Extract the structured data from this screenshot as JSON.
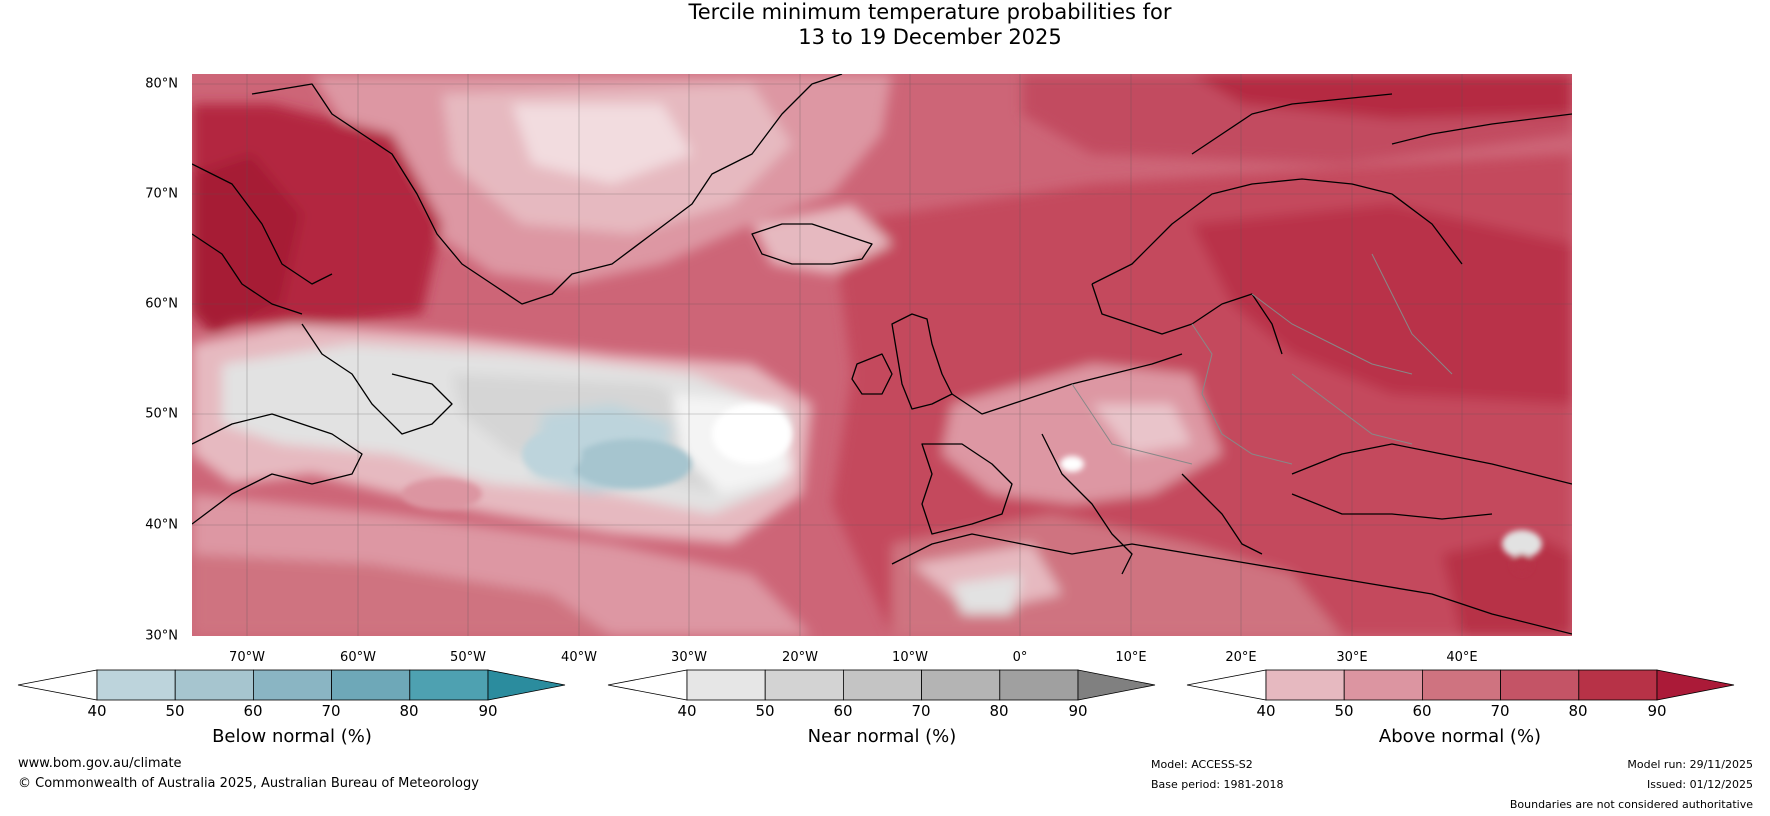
{
  "title": {
    "line1": "Tercile minimum temperature probabilities for",
    "line2": "13 to 19 December 2025"
  },
  "map": {
    "lat_labels": [
      "80°N",
      "70°N",
      "60°N",
      "50°N",
      "40°N",
      "30°N"
    ],
    "lon_labels": [
      "70°W",
      "60°W",
      "50°W",
      "40°W",
      "30°W",
      "20°W",
      "10°W",
      "0°",
      "10°E",
      "20°E",
      "30°E",
      "40°E"
    ],
    "lat_range": [
      30,
      80
    ],
    "lon_range": [
      -80,
      45
    ]
  },
  "colorbars": [
    {
      "title": "Below normal (%)",
      "ticks": [
        "40",
        "50",
        "60",
        "70",
        "80",
        "90"
      ],
      "colors": [
        "#ffffff",
        "#bdd4dc",
        "#a6c5cf",
        "#8ab5c3",
        "#6ea8b8",
        "#4ea1b1",
        "#2b8c9e"
      ]
    },
    {
      "title": "Near normal (%)",
      "ticks": [
        "40",
        "50",
        "60",
        "70",
        "80",
        "90"
      ],
      "colors": [
        "#ffffff",
        "#e6e6e6",
        "#d3d3d3",
        "#c4c4c4",
        "#b4b4b4",
        "#a0a0a0",
        "#808080"
      ]
    },
    {
      "title": "Above normal (%)",
      "ticks": [
        "40",
        "50",
        "60",
        "70",
        "80",
        "90"
      ],
      "colors": [
        "#ffffff",
        "#e6b9c0",
        "#dc95a1",
        "#cf7380",
        "#c45466",
        "#b73247",
        "#ab1a38"
      ]
    }
  ],
  "footer": {
    "website": "www.bom.gov.au/climate",
    "copyright": "© Commonwealth of Australia 2025, Australian Bureau of Meteorology",
    "model": "Model: ACCESS-S2",
    "base_period": "Base period: 1981-2018",
    "model_run": "Model run: 29/11/2025",
    "issued": "Issued: 01/12/2025",
    "disclaimer": "Boundaries are not considered authoritative"
  }
}
